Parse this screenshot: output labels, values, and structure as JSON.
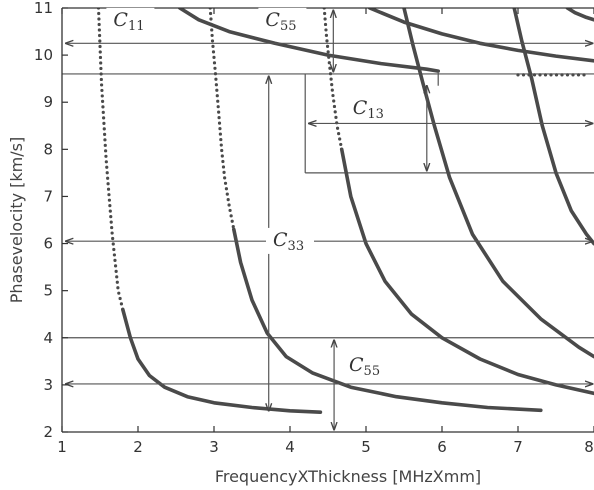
{
  "chart_data": {
    "type": "line",
    "xlabel": "FrequencyXThickness [MHzXmm]",
    "ylabel": "Phasevelocity [km/s]",
    "xlim": [
      1,
      8
    ],
    "ylim": [
      2,
      11
    ],
    "xticks": [
      "1",
      "2",
      "3",
      "4",
      "5",
      "6",
      "7",
      "8"
    ],
    "yticks": [
      "2",
      "3",
      "4",
      "5",
      "6",
      "7",
      "8",
      "9",
      "10",
      "11"
    ],
    "series": [
      {
        "style": "dotted",
        "points": [
          [
            1.48,
            11.0
          ],
          [
            1.5,
            10.2
          ],
          [
            1.52,
            9.4
          ],
          [
            1.55,
            8.6
          ],
          [
            1.58,
            7.8
          ],
          [
            1.62,
            7.0
          ],
          [
            1.66,
            6.2
          ],
          [
            1.7,
            5.6
          ],
          [
            1.74,
            5.0
          ],
          [
            1.8,
            4.6
          ]
        ]
      },
      {
        "style": "solid",
        "points": [
          [
            1.8,
            4.6
          ],
          [
            1.9,
            4.0
          ],
          [
            2.0,
            3.55
          ],
          [
            2.15,
            3.2
          ],
          [
            2.35,
            2.95
          ],
          [
            2.65,
            2.75
          ],
          [
            3.0,
            2.62
          ],
          [
            3.5,
            2.52
          ],
          [
            4.0,
            2.45
          ],
          [
            4.4,
            2.42
          ]
        ]
      },
      {
        "style": "dotted",
        "points": [
          [
            2.95,
            11.0
          ],
          [
            2.98,
            10.3
          ],
          [
            3.02,
            9.6
          ],
          [
            3.06,
            8.8
          ],
          [
            3.1,
            8.0
          ],
          [
            3.14,
            7.4
          ],
          [
            3.2,
            6.8
          ],
          [
            3.26,
            6.3
          ]
        ]
      },
      {
        "style": "solid",
        "points": [
          [
            3.26,
            6.3
          ],
          [
            3.35,
            5.6
          ],
          [
            3.5,
            4.8
          ],
          [
            3.7,
            4.1
          ],
          [
            3.95,
            3.6
          ],
          [
            4.3,
            3.25
          ],
          [
            4.8,
            2.95
          ],
          [
            5.4,
            2.75
          ],
          [
            6.0,
            2.62
          ],
          [
            6.6,
            2.52
          ],
          [
            7.3,
            2.46
          ]
        ]
      },
      {
        "style": "dotted",
        "points": [
          [
            4.45,
            11.0
          ],
          [
            4.48,
            10.4
          ],
          [
            4.52,
            9.8
          ],
          [
            4.56,
            9.2
          ],
          [
            4.62,
            8.5
          ],
          [
            4.68,
            8.0
          ]
        ]
      },
      {
        "style": "solid",
        "points": [
          [
            4.68,
            8.0
          ],
          [
            4.8,
            7.0
          ],
          [
            5.0,
            6.0
          ],
          [
            5.25,
            5.2
          ],
          [
            5.6,
            4.5
          ],
          [
            6.0,
            4.0
          ],
          [
            6.5,
            3.55
          ],
          [
            7.0,
            3.22
          ],
          [
            7.5,
            3.0
          ],
          [
            8.0,
            2.82
          ]
        ]
      },
      {
        "style": "solid",
        "points": [
          [
            5.5,
            11.0
          ],
          [
            5.62,
            10.2
          ],
          [
            5.75,
            9.4
          ],
          [
            5.9,
            8.5
          ],
          [
            6.1,
            7.4
          ],
          [
            6.4,
            6.2
          ],
          [
            6.8,
            5.2
          ],
          [
            7.3,
            4.4
          ],
          [
            7.8,
            3.8
          ],
          [
            8.0,
            3.6
          ]
        ]
      },
      {
        "style": "solid",
        "points": [
          [
            6.95,
            11.0
          ],
          [
            7.05,
            10.3
          ],
          [
            7.18,
            9.5
          ],
          [
            7.32,
            8.5
          ],
          [
            7.5,
            7.5
          ],
          [
            7.7,
            6.7
          ],
          [
            7.9,
            6.2
          ],
          [
            8.0,
            6.0
          ]
        ]
      },
      {
        "style": "solid",
        "points": [
          [
            2.55,
            11.0
          ],
          [
            2.8,
            10.75
          ],
          [
            3.2,
            10.5
          ],
          [
            3.8,
            10.25
          ],
          [
            4.5,
            10.0
          ],
          [
            5.2,
            9.82
          ],
          [
            5.8,
            9.7
          ],
          [
            5.95,
            9.66
          ]
        ]
      },
      {
        "style": "solid",
        "points": [
          [
            5.05,
            11.0
          ],
          [
            5.5,
            10.7
          ],
          [
            6.0,
            10.45
          ],
          [
            6.5,
            10.25
          ],
          [
            7.0,
            10.1
          ],
          [
            7.5,
            9.98
          ],
          [
            8.0,
            9.88
          ]
        ]
      },
      {
        "style": "solid",
        "points": [
          [
            7.65,
            11.0
          ],
          [
            7.75,
            10.9
          ],
          [
            7.9,
            10.8
          ],
          [
            8.0,
            10.75
          ]
        ]
      }
    ],
    "annotations": [
      {
        "text": "C",
        "sub": "11",
        "x": 1.9,
        "y": 10.62
      },
      {
        "text": "C",
        "sub": "55",
        "x": 3.9,
        "y": 10.62
      },
      {
        "text": "C",
        "sub": "13",
        "x": 5.05,
        "y": 8.75
      },
      {
        "text": "C",
        "sub": "33",
        "x": 4.0,
        "y": 5.95
      },
      {
        "text": "C",
        "sub": "55",
        "x": 5.0,
        "y": 3.3
      }
    ]
  }
}
